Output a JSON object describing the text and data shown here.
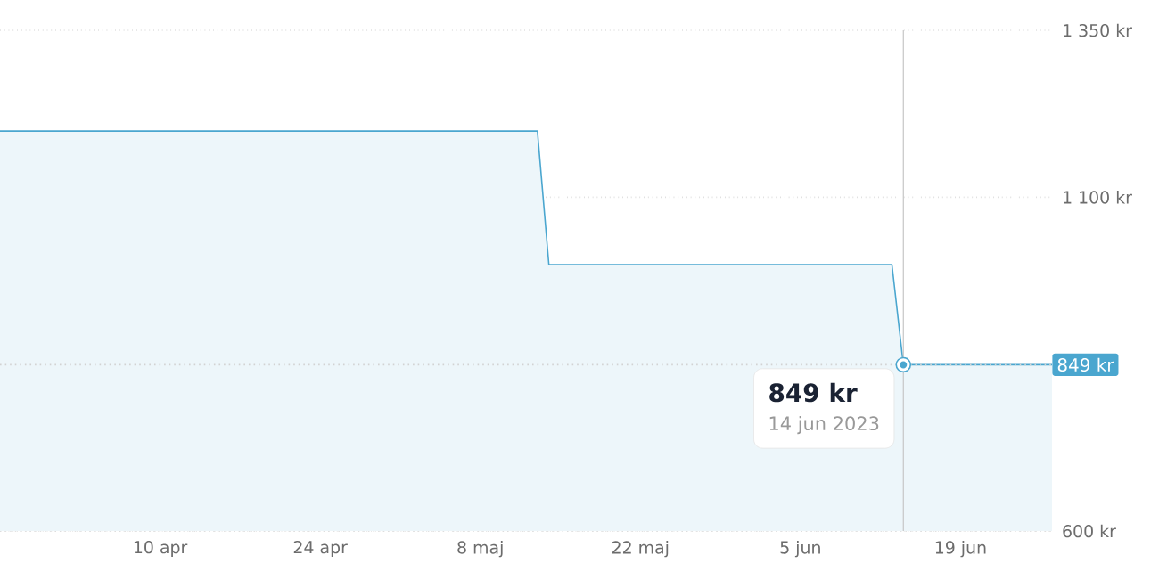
{
  "chart_data": {
    "type": "area",
    "x": [
      "2023-03-27",
      "2023-05-13",
      "2023-05-14",
      "2023-06-13",
      "2023-06-14",
      "2023-06-27"
    ],
    "series": [
      {
        "color": "#4aa6cf",
        "values": [
          1199,
          1199,
          999,
          999,
          849,
          849
        ]
      }
    ],
    "xlim": [
      "2023-03-27",
      "2023-06-27"
    ],
    "xticks": [
      {
        "value": "2023-04-10",
        "label": "10 apr"
      },
      {
        "value": "2023-04-24",
        "label": "24 apr"
      },
      {
        "value": "2023-05-08",
        "label": "8 maj"
      },
      {
        "value": "2023-05-22",
        "label": "22 maj"
      },
      {
        "value": "2023-06-05",
        "label": "5 jun"
      },
      {
        "value": "2023-06-19",
        "label": "19 jun"
      }
    ],
    "ylim": [
      600,
      1350
    ],
    "yticks": [
      {
        "value": 600,
        "label": "600 kr"
      },
      {
        "value": 1100,
        "label": "1 100 kr"
      },
      {
        "value": 1350,
        "label": "1 350 kr"
      }
    ],
    "ref_lines": [
      {
        "axis": "y",
        "value": 849,
        "label": "849 kr"
      },
      {
        "axis": "x",
        "value": "2023-06-14",
        "color": "#c6c6c6"
      }
    ],
    "annotations": [
      {
        "text": "849 kr",
        "x": "2023-06-14",
        "y": 849
      },
      "14 jun 2023"
    ],
    "grid": "y",
    "marker": "none",
    "line_style": "solid"
  }
}
